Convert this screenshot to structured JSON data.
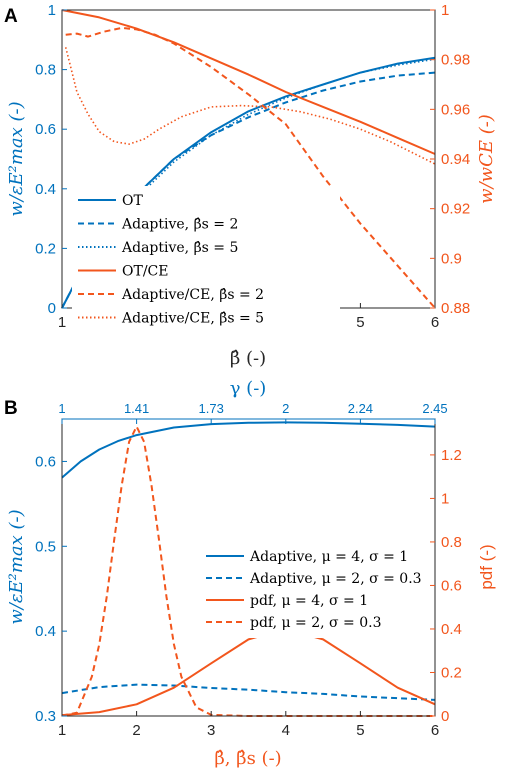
{
  "colors": {
    "blue": "#0072BD",
    "orange": "#F2561D",
    "axis": "#262626"
  },
  "chart_data": [
    {
      "panel": "A",
      "type": "line",
      "xlabel": "β̂ (-)",
      "ylabel_left": "w/εE²max (-)",
      "ylabel_right": "w/wCE (-)",
      "xlim": [
        1,
        6
      ],
      "ylim_left": [
        0,
        1
      ],
      "ylim_right": [
        0.88,
        1
      ],
      "xticks": [
        "1",
        "2",
        "3",
        "4",
        "5",
        "6"
      ],
      "yticks_left": [
        "0",
        "0.2",
        "0.4",
        "0.6",
        "0.8",
        "1"
      ],
      "yticks_right": [
        "0.88",
        "0.9",
        "0.92",
        "0.94",
        "0.96",
        "0.98",
        "1"
      ],
      "legend_position": "lower-left",
      "series": [
        {
          "name": "OT",
          "axis": "left",
          "style": "solid",
          "color": "blue",
          "x": [
            1,
            1.25,
            1.5,
            1.75,
            2,
            2.5,
            3,
            3.5,
            4,
            4.5,
            5,
            5.5,
            6
          ],
          "y": [
            0,
            0.12,
            0.22,
            0.31,
            0.38,
            0.5,
            0.59,
            0.66,
            0.71,
            0.75,
            0.79,
            0.82,
            0.84
          ]
        },
        {
          "name": "Adaptive, β̂s = 2",
          "axis": "left",
          "style": "dashed",
          "color": "blue",
          "x": [
            1,
            1.25,
            1.5,
            1.75,
            2,
            2.5,
            3,
            3.5,
            4,
            4.5,
            5,
            5.5,
            6
          ],
          "y": [
            0,
            0.12,
            0.22,
            0.31,
            0.38,
            0.5,
            0.58,
            0.64,
            0.69,
            0.73,
            0.76,
            0.78,
            0.79
          ]
        },
        {
          "name": "Adaptive, β̂s = 5",
          "axis": "left",
          "style": "dotted",
          "color": "blue",
          "x": [
            1,
            1.25,
            1.5,
            1.75,
            2,
            2.5,
            3,
            3.5,
            4,
            4.5,
            5,
            5.5,
            6
          ],
          "y": [
            0,
            0.115,
            0.21,
            0.3,
            0.37,
            0.49,
            0.58,
            0.65,
            0.705,
            0.75,
            0.79,
            0.815,
            0.835
          ]
        },
        {
          "name": "OT/CE",
          "axis": "right",
          "style": "solid",
          "color": "orange",
          "x": [
            1,
            1.5,
            2,
            2.5,
            3,
            3.5,
            4,
            4.5,
            5,
            5.5,
            6
          ],
          "y": [
            1,
            0.997,
            0.9925,
            0.987,
            0.9805,
            0.974,
            0.967,
            0.961,
            0.955,
            0.9485,
            0.942
          ]
        },
        {
          "name": "Adaptive/CE, β̂s = 2",
          "axis": "right",
          "style": "dashed",
          "color": "orange",
          "x": [
            1.05,
            1.2,
            1.35,
            1.55,
            1.8,
            2,
            2.25,
            2.5,
            3,
            3.5,
            4,
            4.5,
            5,
            5.5,
            6
          ],
          "y": [
            0.99,
            0.9905,
            0.9893,
            0.9912,
            0.9928,
            0.9922,
            0.99,
            0.9865,
            0.977,
            0.966,
            0.954,
            0.933,
            0.914,
            0.897,
            0.88
          ]
        },
        {
          "name": "Adaptive/CE, β̂s = 5",
          "axis": "right",
          "style": "dotted",
          "color": "orange",
          "x": [
            1.05,
            1.1,
            1.2,
            1.35,
            1.5,
            1.7,
            1.9,
            2.1,
            2.3,
            2.6,
            3,
            3.4,
            3.8,
            4.2,
            4.6,
            5,
            5.4,
            5.8,
            6
          ],
          "y": [
            0.985,
            0.979,
            0.967,
            0.958,
            0.951,
            0.947,
            0.946,
            0.948,
            0.952,
            0.957,
            0.961,
            0.9615,
            0.961,
            0.959,
            0.956,
            0.952,
            0.947,
            0.941,
            0.938
          ]
        }
      ]
    },
    {
      "panel": "B",
      "type": "line",
      "xlabel": "β̂, β̂s (-)",
      "top_xlabel": "γ (-)",
      "ylabel_left": "w/εE²max (-)",
      "ylabel_right": "pdf (-)",
      "xlim": [
        1,
        6
      ],
      "ylim_left": [
        0.3,
        0.65
      ],
      "ylim_right": [
        0,
        1.365
      ],
      "xticks": [
        "1",
        "2",
        "3",
        "4",
        "5",
        "6"
      ],
      "top_xticks": [
        {
          "label": "1",
          "x": 1
        },
        {
          "label": "1.41",
          "x": 2
        },
        {
          "label": "1.73",
          "x": 3
        },
        {
          "label": "2",
          "x": 4
        },
        {
          "label": "2.24",
          "x": 5
        },
        {
          "label": "2.45",
          "x": 6
        }
      ],
      "yticks_left": [
        "0.3",
        "0.4",
        "0.5",
        "0.6"
      ],
      "yticks_right": [
        "0",
        "0.2",
        "0.4",
        "0.6",
        "0.8",
        "1",
        "1.2"
      ],
      "legend_position": "right-middle",
      "series": [
        {
          "name": "Adaptive, μ = 4, σ = 1",
          "axis": "left",
          "style": "solid",
          "color": "blue",
          "x": [
            1,
            1.25,
            1.5,
            1.75,
            2,
            2.5,
            3,
            3.5,
            4,
            4.5,
            5,
            5.5,
            6
          ],
          "y": [
            0.581,
            0.6,
            0.614,
            0.624,
            0.631,
            0.64,
            0.644,
            0.6455,
            0.646,
            0.6455,
            0.6445,
            0.643,
            0.641
          ]
        },
        {
          "name": "Adaptive, μ = 2, σ = 0.3",
          "axis": "left",
          "style": "dashed",
          "color": "blue",
          "x": [
            1,
            1.5,
            2,
            2.5,
            3,
            3.5,
            4,
            4.5,
            5,
            5.5,
            6
          ],
          "y": [
            0.327,
            0.334,
            0.337,
            0.336,
            0.333,
            0.331,
            0.328,
            0.326,
            0.323,
            0.321,
            0.319
          ]
        },
        {
          "name": "pdf, μ = 4, σ = 1",
          "axis": "right",
          "style": "solid",
          "color": "orange",
          "x": [
            1,
            1.5,
            2,
            2.5,
            3,
            3.5,
            4,
            4.5,
            5,
            5.5,
            6
          ],
          "y": [
            0.004,
            0.018,
            0.054,
            0.13,
            0.242,
            0.352,
            0.399,
            0.352,
            0.242,
            0.13,
            0.054
          ]
        },
        {
          "name": "pdf, μ = 2, σ = 0.3",
          "axis": "right",
          "style": "dashed",
          "color": "orange",
          "x": [
            1,
            1.2,
            1.4,
            1.5,
            1.6,
            1.7,
            1.8,
            1.9,
            2,
            2.1,
            2.2,
            2.3,
            2.4,
            2.5,
            2.6,
            2.8,
            3,
            3.5,
            6
          ],
          "y": [
            0.002,
            0.015,
            0.18,
            0.33,
            0.55,
            0.81,
            1.06,
            1.26,
            1.33,
            1.26,
            1.06,
            0.81,
            0.55,
            0.33,
            0.18,
            0.04,
            0.005,
            0,
            0
          ]
        }
      ]
    }
  ]
}
